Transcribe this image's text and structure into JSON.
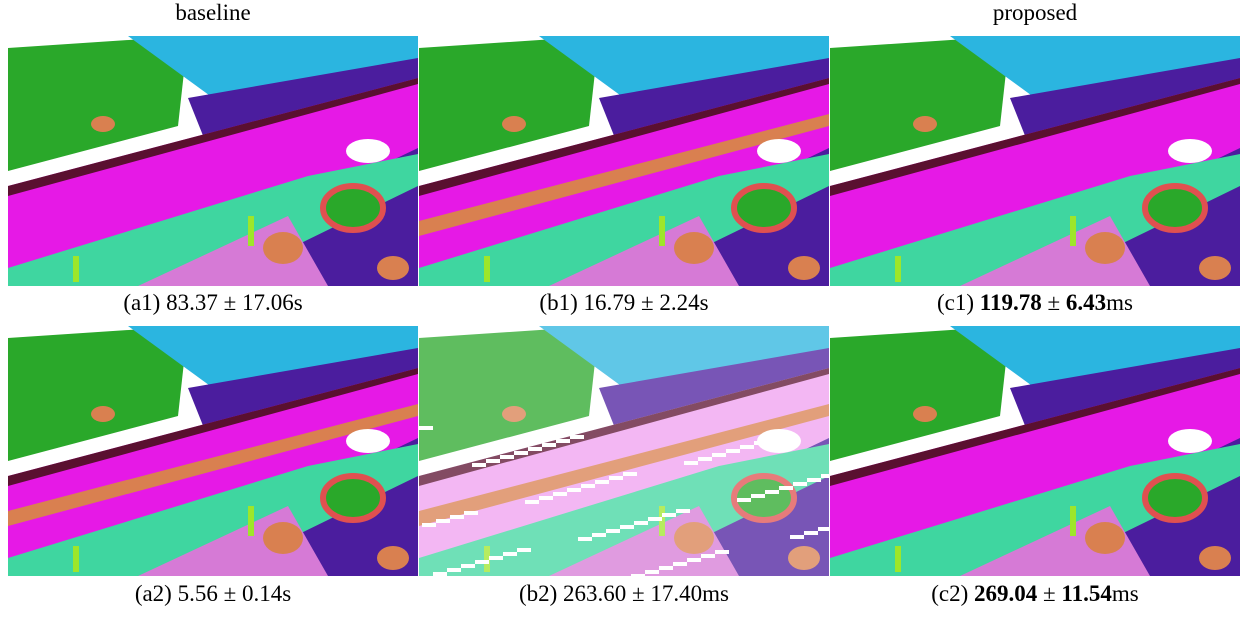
{
  "header": {
    "left": "baseline",
    "right": "proposed"
  },
  "panels": [
    {
      "label": "(a1)",
      "mean": "83.37",
      "pm": "±",
      "std": "17.06",
      "unit": "s",
      "bold": false
    },
    {
      "label": "(b1)",
      "mean": "16.79",
      "pm": "±",
      "std": "2.24",
      "unit": "s",
      "bold": false
    },
    {
      "label": "(c1)",
      "mean": "119.78",
      "pm": "±",
      "std": "6.43",
      "unit": "ms",
      "bold": true
    },
    {
      "label": "(a2)",
      "mean": "5.56",
      "pm": "±",
      "std": "0.14",
      "unit": "s",
      "bold": false
    },
    {
      "label": "(b2)",
      "mean": "263.60",
      "pm": "±",
      "std": "17.40",
      "unit": "ms",
      "bold": false
    },
    {
      "label": "(c2)",
      "mean": "269.04",
      "pm": "±",
      "std": "11.54",
      "unit": "ms",
      "bold": true
    }
  ]
}
